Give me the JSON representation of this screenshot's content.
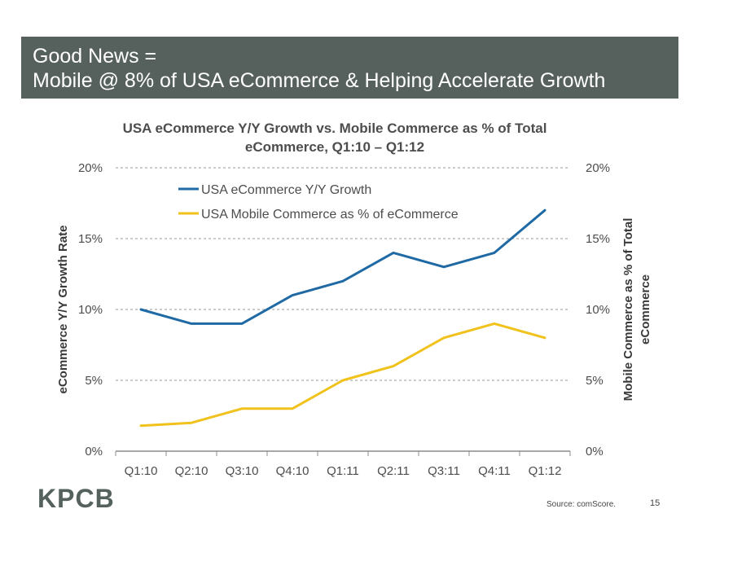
{
  "header": {
    "line1": "Good News =",
    "line2": "Mobile @ 8% of USA eCommerce & Helping Accelerate Growth",
    "background": "#56615d"
  },
  "chart_data": {
    "type": "line",
    "title_line1": "USA eCommerce Y/Y Growth vs. Mobile Commerce as % of Total",
    "title_line2": "eCommerce, Q1:10 – Q1:12",
    "categories": [
      "Q1:10",
      "Q2:10",
      "Q3:10",
      "Q4:10",
      "Q1:11",
      "Q2:11",
      "Q3:11",
      "Q4:11",
      "Q1:12"
    ],
    "series": [
      {
        "name": "USA eCommerce Y/Y Growth",
        "color": "#1f6aa5",
        "axis": "left",
        "values": [
          10,
          9,
          9,
          11,
          12,
          14,
          13,
          14,
          17
        ]
      },
      {
        "name": "USA Mobile Commerce as % of eCommerce",
        "color": "#f1c21b",
        "axis": "right",
        "values": [
          1.8,
          2,
          3,
          3,
          5,
          6,
          8,
          9,
          8
        ]
      }
    ],
    "ylim": [
      0,
      20
    ],
    "y_ticks": [
      "0%",
      "5%",
      "10%",
      "15%",
      "20%"
    ],
    "y2_ticks": [
      "0%",
      "5%",
      "10%",
      "15%",
      "20%"
    ],
    "ylabel": "eCommerce Y/Y Growth Rate",
    "y2label_line1": "Mobile Commerce as % of Total",
    "y2label_line2": "eCommerce",
    "grid": true,
    "legend_position": "top-left"
  },
  "footer": {
    "logo": "KPCB",
    "source": "Source: comScore.",
    "page_number": "15"
  }
}
